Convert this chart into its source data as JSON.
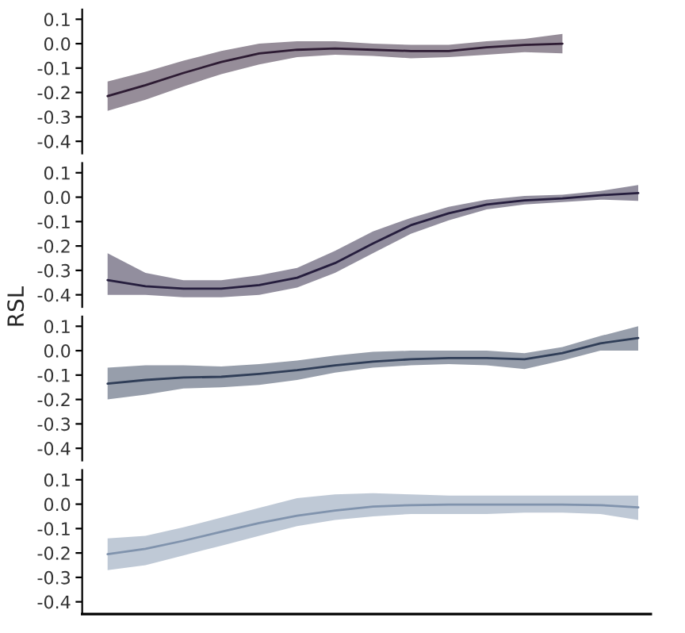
{
  "chart_data": [
    {
      "type": "line",
      "categories": [
        null,
        null,
        null,
        null,
        null,
        null,
        null,
        null,
        null,
        null,
        null,
        null,
        null
      ],
      "ylim": [
        -0.45,
        0.14
      ],
      "yticks": [
        {
          "value": 0.1,
          "label": "0.1"
        },
        {
          "value": 0.0,
          "label": "0.0"
        },
        {
          "value": -0.1,
          "label": "-0.1"
        },
        {
          "value": -0.2,
          "label": "-0.2"
        },
        {
          "value": -0.3,
          "label": "-0.3"
        },
        {
          "value": -0.4,
          "label": "-0.4"
        }
      ],
      "tick_labels": "y",
      "grid": false,
      "series": [
        {
          "color": "#2d1b33",
          "values": [
            -0.215,
            -0.17,
            -0.12,
            -0.075,
            -0.04,
            -0.025,
            -0.02,
            -0.025,
            -0.03,
            -0.03,
            -0.015,
            -0.005,
            0.0
          ],
          "lower": [
            -0.275,
            -0.23,
            -0.175,
            -0.125,
            -0.085,
            -0.055,
            -0.045,
            -0.05,
            -0.06,
            -0.055,
            -0.045,
            -0.035,
            -0.04
          ],
          "upper": [
            -0.155,
            -0.115,
            -0.07,
            -0.03,
            0.0,
            0.01,
            0.01,
            0.0,
            -0.005,
            -0.005,
            0.01,
            0.02,
            0.04
          ]
        }
      ]
    },
    {
      "type": "line",
      "ylabel": "RSL",
      "categories": [
        null,
        null,
        null,
        null,
        null,
        null,
        null,
        null,
        null,
        null,
        null,
        null,
        null,
        null,
        null
      ],
      "ylim": [
        -0.45,
        0.14
      ],
      "yticks": [
        {
          "value": 0.1,
          "label": "0.1"
        },
        {
          "value": 0.0,
          "label": "0.0"
        },
        {
          "value": -0.1,
          "label": "-0.1"
        },
        {
          "value": -0.2,
          "label": "-0.2"
        },
        {
          "value": -0.3,
          "label": "-0.3"
        },
        {
          "value": -0.4,
          "label": "-0.4"
        }
      ],
      "tick_labels": "y",
      "grid": false,
      "series": [
        {
          "color": "#251d3d",
          "values": [
            -0.34,
            -0.365,
            -0.375,
            -0.375,
            -0.36,
            -0.33,
            -0.27,
            -0.19,
            -0.115,
            -0.066,
            -0.03,
            -0.013,
            -0.005,
            0.008,
            0.017
          ],
          "lower": [
            -0.4,
            -0.4,
            -0.41,
            -0.41,
            -0.4,
            -0.37,
            -0.31,
            -0.23,
            -0.15,
            -0.095,
            -0.05,
            -0.03,
            -0.02,
            -0.01,
            -0.015
          ],
          "upper": [
            -0.23,
            -0.31,
            -0.34,
            -0.34,
            -0.32,
            -0.29,
            -0.22,
            -0.14,
            -0.085,
            -0.04,
            -0.01,
            0.005,
            0.01,
            0.025,
            0.05
          ]
        }
      ]
    },
    {
      "type": "line",
      "categories": [
        null,
        null,
        null,
        null,
        null,
        null,
        null,
        null,
        null,
        null,
        null,
        null,
        null,
        null,
        null
      ],
      "ylim": [
        -0.45,
        0.14
      ],
      "yticks": [
        {
          "value": 0.1,
          "label": "0.1"
        },
        {
          "value": 0.0,
          "label": "0.0"
        },
        {
          "value": -0.1,
          "label": "-0.1"
        },
        {
          "value": -0.2,
          "label": "-0.2"
        },
        {
          "value": -0.3,
          "label": "-0.3"
        },
        {
          "value": -0.4,
          "label": "-0.4"
        }
      ],
      "tick_labels": "y",
      "grid": false,
      "series": [
        {
          "color": "#2f3d57",
          "values": [
            -0.135,
            -0.12,
            -0.11,
            -0.107,
            -0.095,
            -0.08,
            -0.06,
            -0.045,
            -0.035,
            -0.03,
            -0.03,
            -0.035,
            -0.01,
            0.03,
            0.052
          ],
          "lower": [
            -0.2,
            -0.18,
            -0.155,
            -0.15,
            -0.14,
            -0.12,
            -0.09,
            -0.07,
            -0.06,
            -0.055,
            -0.06,
            -0.075,
            -0.04,
            0.0,
            0.0
          ],
          "upper": [
            -0.07,
            -0.06,
            -0.06,
            -0.065,
            -0.055,
            -0.04,
            -0.02,
            -0.005,
            0.0,
            0.0,
            0.0,
            -0.01,
            0.015,
            0.06,
            0.1
          ]
        }
      ]
    },
    {
      "type": "line",
      "categories": [
        null,
        null,
        null,
        null,
        null,
        null,
        null,
        null,
        null,
        null,
        null,
        null,
        null,
        null,
        null
      ],
      "ylim": [
        -0.45,
        0.14
      ],
      "yticks": [
        {
          "value": 0.1,
          "label": "0.1"
        },
        {
          "value": 0.0,
          "label": "0.0"
        },
        {
          "value": -0.1,
          "label": "-0.1"
        },
        {
          "value": -0.2,
          "label": "-0.2"
        },
        {
          "value": -0.3,
          "label": "-0.3"
        },
        {
          "value": -0.4,
          "label": "-0.4"
        }
      ],
      "tick_labels": "y",
      "grid": false,
      "series": [
        {
          "color": "#8093ad",
          "values": [
            -0.205,
            -0.183,
            -0.15,
            -0.113,
            -0.077,
            -0.047,
            -0.026,
            -0.01,
            -0.004,
            -0.002,
            -0.002,
            -0.002,
            -0.002,
            -0.004,
            -0.013
          ],
          "lower": [
            -0.27,
            -0.25,
            -0.21,
            -0.17,
            -0.13,
            -0.09,
            -0.065,
            -0.05,
            -0.04,
            -0.04,
            -0.04,
            -0.035,
            -0.035,
            -0.04,
            -0.065
          ],
          "upper": [
            -0.14,
            -0.13,
            -0.095,
            -0.055,
            -0.015,
            0.025,
            0.04,
            0.045,
            0.04,
            0.035,
            0.035,
            0.035,
            0.035,
            0.035,
            0.035
          ]
        }
      ]
    }
  ]
}
